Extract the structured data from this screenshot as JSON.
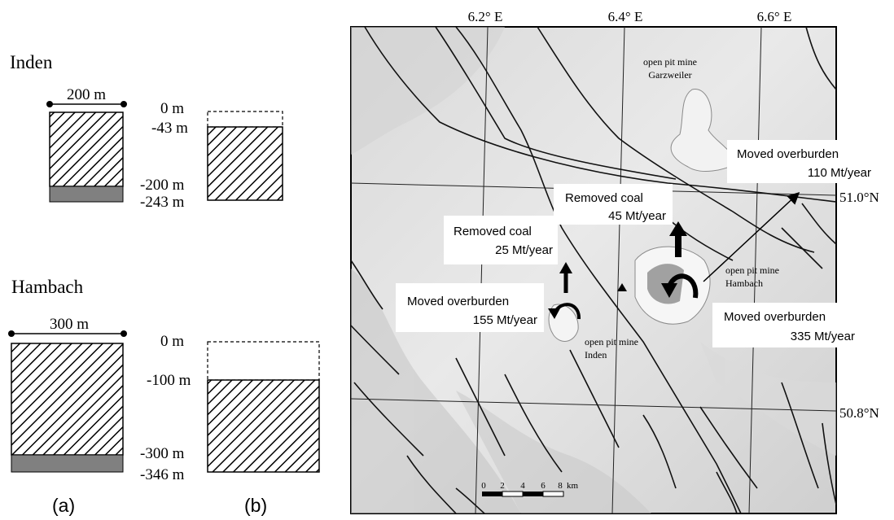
{
  "left_panel": {
    "inden": {
      "title": "Inden",
      "width_label": "200 m",
      "depths": [
        "0 m",
        "-43 m",
        "-200 m",
        "-243 m"
      ]
    },
    "hambach": {
      "title": "Hambach",
      "width_label": "300 m",
      "depths": [
        "0 m",
        "-100 m",
        "-300 m",
        "-346 m"
      ]
    },
    "panel_labels": [
      "(a)",
      "(b)"
    ]
  },
  "map": {
    "lon_labels": [
      "6.2° E",
      "6.4° E",
      "6.6° E"
    ],
    "lat_labels": [
      "51.0°N",
      "50.8°N"
    ],
    "mines": [
      {
        "name": "open pit mine\nGarzweiler"
      },
      {
        "name": "open pit mine\nHambach"
      },
      {
        "name": "open pit mine\nInden"
      }
    ],
    "callouts": [
      {
        "line1": "Moved overburden",
        "line2": "110 Mt/year"
      },
      {
        "line1": "Removed coal",
        "line2": "45 Mt/year"
      },
      {
        "line1": "Removed coal",
        "line2": "25 Mt/year"
      },
      {
        "line1": "Moved overburden",
        "line2": "155 Mt/year"
      },
      {
        "line1": "Moved overburden",
        "line2": "335 Mt/year"
      }
    ],
    "scale_bar": {
      "ticks": [
        "0",
        "2",
        "4",
        "6",
        "8"
      ],
      "unit": "km"
    }
  }
}
